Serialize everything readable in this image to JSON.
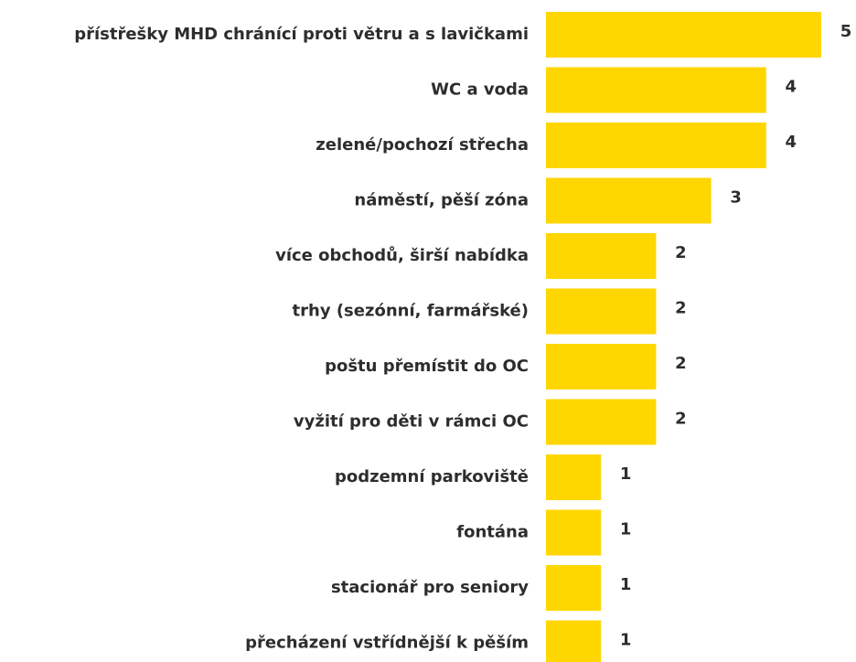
{
  "chart_data": {
    "type": "barh",
    "categories": [
      "přístřešky MHD chránící proti větru a s lavičkami",
      "WC a voda",
      "zelené/pochozí střecha",
      "náměstí, pěší zóna",
      "více obchodů, širší nabídka",
      "trhy (sezónní, farmářské)",
      "poštu přemístit do OC",
      "vyžití pro děti v rámci OC",
      "podzemní parkoviště",
      "fontána",
      "stacionář pro seniory",
      "přecházení vstřídnější k pěším"
    ],
    "values": [
      5,
      4,
      4,
      3,
      2,
      2,
      2,
      2,
      1,
      1,
      1,
      1
    ],
    "color": "#ffd600"
  }
}
